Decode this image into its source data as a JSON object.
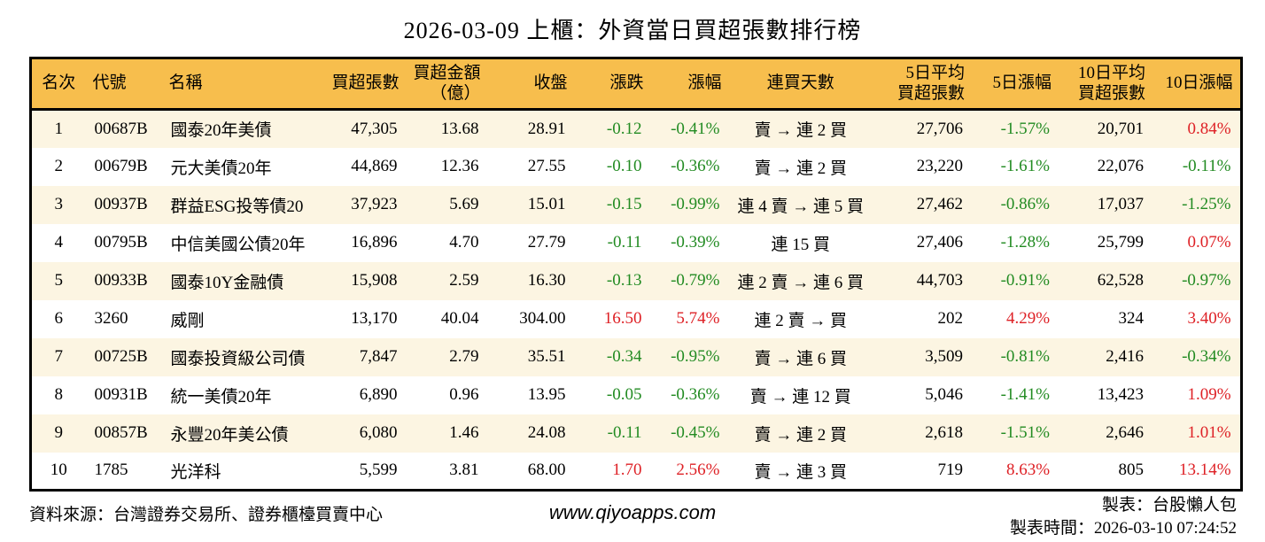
{
  "title": "2026-03-09 上櫃：外資當日買超張數排行榜",
  "colors": {
    "header_bg": "#F7BE4D",
    "row_alt_bg": "#FCF5E2",
    "positive": "#DE2126",
    "negative": "#228B22",
    "border": "#000000"
  },
  "table": {
    "columns": [
      {
        "key": "rank",
        "label": "名次",
        "align": "center",
        "signed": false
      },
      {
        "key": "code",
        "label": "代號",
        "align": "left",
        "signed": false
      },
      {
        "key": "name",
        "label": "名稱",
        "align": "left",
        "signed": false
      },
      {
        "key": "vol",
        "label": "買超張數",
        "align": "right",
        "signed": false
      },
      {
        "key": "amt",
        "label": "買超金額\n（億）",
        "align": "right",
        "signed": false
      },
      {
        "key": "close",
        "label": "收盤",
        "align": "right",
        "signed": false
      },
      {
        "key": "chg",
        "label": "漲跌",
        "align": "right",
        "signed": true
      },
      {
        "key": "pct",
        "label": "漲幅",
        "align": "right",
        "signed": true
      },
      {
        "key": "streak",
        "label": "連買天數",
        "align": "center",
        "signed": false
      },
      {
        "key": "avg5",
        "label": "5日平均\n買超張數",
        "align": "right",
        "signed": false
      },
      {
        "key": "pct5",
        "label": "5日漲幅",
        "align": "right",
        "signed": true
      },
      {
        "key": "avg10",
        "label": "10日平均\n買超張數",
        "align": "right",
        "signed": false
      },
      {
        "key": "pct10",
        "label": "10日漲幅",
        "align": "right",
        "signed": true
      }
    ],
    "rows": [
      {
        "rank": "1",
        "code": "00687B",
        "name": "國泰20年美債",
        "vol": "47,305",
        "amt": "13.68",
        "close": "28.91",
        "chg": "-0.12",
        "pct": "-0.41%",
        "streak": "賣 → 連 2 買",
        "avg5": "27,706",
        "pct5": "-1.57%",
        "avg10": "20,701",
        "pct10": "0.84%"
      },
      {
        "rank": "2",
        "code": "00679B",
        "name": "元大美債20年",
        "vol": "44,869",
        "amt": "12.36",
        "close": "27.55",
        "chg": "-0.10",
        "pct": "-0.36%",
        "streak": "賣 → 連 2 買",
        "avg5": "23,220",
        "pct5": "-1.61%",
        "avg10": "22,076",
        "pct10": "-0.11%"
      },
      {
        "rank": "3",
        "code": "00937B",
        "name": "群益ESG投等債20",
        "vol": "37,923",
        "amt": "5.69",
        "close": "15.01",
        "chg": "-0.15",
        "pct": "-0.99%",
        "streak": "連 4 賣 → 連 5 買",
        "avg5": "27,462",
        "pct5": "-0.86%",
        "avg10": "17,037",
        "pct10": "-1.25%"
      },
      {
        "rank": "4",
        "code": "00795B",
        "name": "中信美國公債20年",
        "vol": "16,896",
        "amt": "4.70",
        "close": "27.79",
        "chg": "-0.11",
        "pct": "-0.39%",
        "streak": "連 15 買",
        "avg5": "27,406",
        "pct5": "-1.28%",
        "avg10": "25,799",
        "pct10": "0.07%"
      },
      {
        "rank": "5",
        "code": "00933B",
        "name": "國泰10Y金融債",
        "vol": "15,908",
        "amt": "2.59",
        "close": "16.30",
        "chg": "-0.13",
        "pct": "-0.79%",
        "streak": "連 2 賣 → 連 6 買",
        "avg5": "44,703",
        "pct5": "-0.91%",
        "avg10": "62,528",
        "pct10": "-0.97%"
      },
      {
        "rank": "6",
        "code": "3260",
        "name": "威剛",
        "vol": "13,170",
        "amt": "40.04",
        "close": "304.00",
        "chg": "16.50",
        "pct": "5.74%",
        "streak": "連 2 賣 → 買",
        "avg5": "202",
        "pct5": "4.29%",
        "avg10": "324",
        "pct10": "3.40%"
      },
      {
        "rank": "7",
        "code": "00725B",
        "name": "國泰投資級公司債",
        "vol": "7,847",
        "amt": "2.79",
        "close": "35.51",
        "chg": "-0.34",
        "pct": "-0.95%",
        "streak": "賣 → 連 6 買",
        "avg5": "3,509",
        "pct5": "-0.81%",
        "avg10": "2,416",
        "pct10": "-0.34%"
      },
      {
        "rank": "8",
        "code": "00931B",
        "name": "統一美債20年",
        "vol": "6,890",
        "amt": "0.96",
        "close": "13.95",
        "chg": "-0.05",
        "pct": "-0.36%",
        "streak": "賣 → 連 12 買",
        "avg5": "5,046",
        "pct5": "-1.41%",
        "avg10": "13,423",
        "pct10": "1.09%"
      },
      {
        "rank": "9",
        "code": "00857B",
        "name": "永豐20年美公債",
        "vol": "6,080",
        "amt": "1.46",
        "close": "24.08",
        "chg": "-0.11",
        "pct": "-0.45%",
        "streak": "賣 → 連 2 買",
        "avg5": "2,618",
        "pct5": "-1.51%",
        "avg10": "2,646",
        "pct10": "1.01%"
      },
      {
        "rank": "10",
        "code": "1785",
        "name": "光洋科",
        "vol": "5,599",
        "amt": "3.81",
        "close": "68.00",
        "chg": "1.70",
        "pct": "2.56%",
        "streak": "賣 → 連 3 買",
        "avg5": "719",
        "pct5": "8.63%",
        "avg10": "805",
        "pct10": "13.14%"
      }
    ]
  },
  "footer": {
    "source": "資料來源：台灣證券交易所、證券櫃檯買賣中心",
    "website": "www.qiyoapps.com",
    "maker": "製表：台股懶人包",
    "maker_time": "製表時間：2026-03-10 07:24:52"
  }
}
